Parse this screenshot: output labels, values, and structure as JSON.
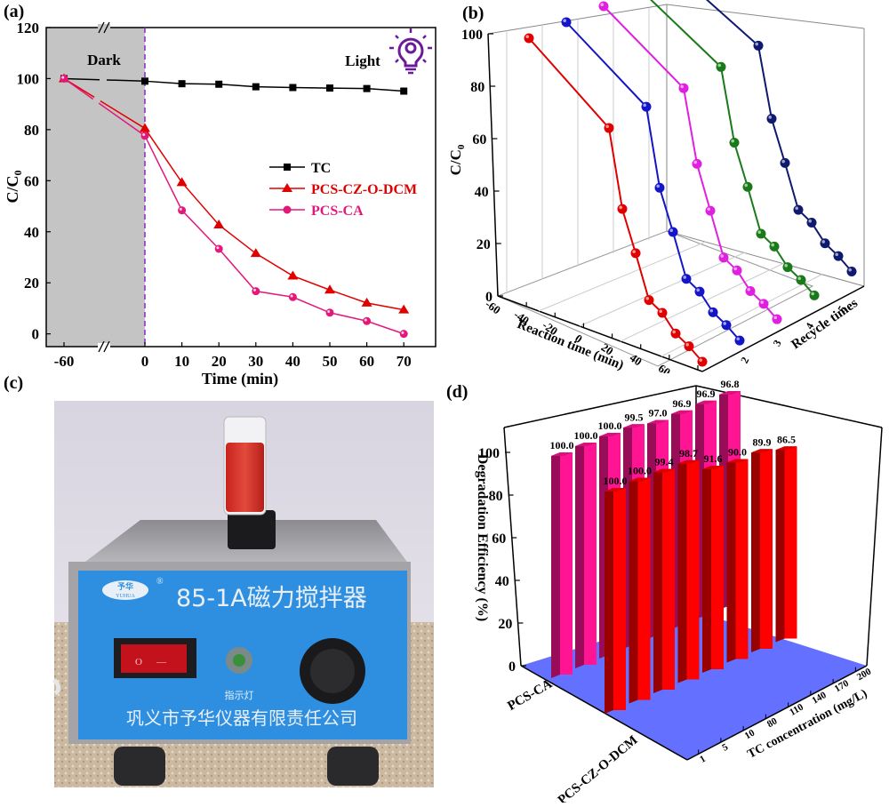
{
  "panels": {
    "a": {
      "label": "(a)"
    },
    "b": {
      "label": "(b)"
    },
    "c": {
      "label": "(c)"
    },
    "d": {
      "label": "(d)"
    }
  },
  "chart_data": [
    {
      "id": "a",
      "type": "line",
      "title": "",
      "xlabel": "Time (min)",
      "ylabel": "C/C0",
      "x": [
        -60,
        0,
        10,
        20,
        30,
        40,
        50,
        60,
        70
      ],
      "x_tick_labels": [
        "-60",
        "0",
        "10",
        "20",
        "30",
        "40",
        "50",
        "60",
        "70"
      ],
      "x_axis_break": "between -60 and 0",
      "ylim": [
        -5,
        120
      ],
      "y_ticks": [
        0,
        20,
        40,
        60,
        80,
        100,
        120
      ],
      "grid": false,
      "legend_position": "right-middle",
      "annotations": [
        {
          "text": "Dark",
          "region": "x from -60 to 0 shaded gray"
        },
        {
          "text": "Light",
          "icon": "lightbulb-icon"
        }
      ],
      "divider": {
        "x": 0,
        "style": "dashed",
        "color": "#8e24c6"
      },
      "colors": {
        "dark_region": "#c4c4c4",
        "icon": "#6a1b9a"
      },
      "series": [
        {
          "name": "TC",
          "marker": "square",
          "color": "#000000",
          "values": [
            100,
            99,
            98,
            97.8,
            96.8,
            96.5,
            96.3,
            96.1,
            95.1
          ]
        },
        {
          "name": "PCS-CZ-O-DCM",
          "marker": "triangle",
          "color": "#e00000",
          "values": [
            100,
            80.5,
            59.3,
            42.7,
            31.5,
            22.7,
            17.2,
            12.1,
            9.4
          ]
        },
        {
          "name": "PCS-CA",
          "marker": "circle",
          "color": "#e3197a",
          "values": [
            100,
            77.6,
            48.4,
            33.3,
            16.7,
            14.4,
            8.3,
            5.0,
            0
          ]
        }
      ]
    },
    {
      "id": "b",
      "type": "line",
      "projection": "3d",
      "title": "",
      "xlabel": "Reaction time (min)",
      "ylabel": "C/C0",
      "zlabel": "Recycle times",
      "x": [
        -60,
        0,
        10,
        20,
        30,
        40,
        50,
        60,
        70
      ],
      "x_tick_labels": [
        "-60",
        "-40",
        "-20",
        "0",
        "20",
        "40",
        "60",
        "80"
      ],
      "z_tick_labels": [
        "1",
        "2",
        "3",
        "4",
        "5"
      ],
      "ylim": [
        0,
        100
      ],
      "y_ticks": [
        0,
        20,
        40,
        60,
        80,
        100
      ],
      "grid": true,
      "series": [
        {
          "name": "1",
          "color": "#e00000",
          "values": [
            100,
            77,
            48,
            33,
            17,
            14,
            8,
            5,
            1
          ]
        },
        {
          "name": "2",
          "color": "#1414c8",
          "values": [
            100,
            79,
            50,
            35,
            19,
            16,
            10,
            7,
            3
          ]
        },
        {
          "name": "3",
          "color": "#e020e0",
          "values": [
            100,
            80,
            53,
            37,
            21,
            18,
            12,
            9,
            5
          ]
        },
        {
          "name": "4",
          "color": "#1a7a1a",
          "values": [
            100,
            82,
            55,
            40,
            24,
            21,
            15,
            12,
            8
          ]
        },
        {
          "name": "5",
          "color": "#0f1a6e",
          "values": [
            100,
            84,
            58,
            43,
            27,
            24,
            18,
            15,
            11
          ]
        }
      ]
    },
    {
      "id": "d",
      "type": "bar",
      "projection": "3d",
      "title": "",
      "xlabel": "TC concentration (mg/L)",
      "ylabel": "Degradation Efficiency  (%)",
      "categories": [
        "1",
        "5",
        "10",
        "80",
        "110",
        "140",
        "170",
        "200"
      ],
      "rows": [
        "PCS-CA",
        "PCS-CZ-O-DCM"
      ],
      "ylim": [
        0,
        100
      ],
      "y_ticks": [
        0,
        20,
        40,
        60,
        80,
        100
      ],
      "floor_color": "#6470ff",
      "series": [
        {
          "name": "PCS-CA",
          "color": "#ff1493",
          "values": [
            100.0,
            100.0,
            100.0,
            99.5,
            97.0,
            96.9,
            96.9,
            96.8
          ],
          "labels": [
            "100.0",
            "100.0",
            "100.0",
            "99.5",
            "97.0",
            "96.9",
            "96.9",
            "96.8"
          ]
        },
        {
          "name": "PCS-CZ-O-DCM",
          "color": "#ff0000",
          "values": [
            100.0,
            100.0,
            99.4,
            98.7,
            91.6,
            90.0,
            89.9,
            86.5
          ],
          "labels": [
            "100.0",
            "100.0",
            "99.4",
            "98.7",
            "91.6",
            "90.0",
            "89.9",
            "86.5"
          ]
        }
      ]
    }
  ],
  "photo": {
    "brand_cn": "予华",
    "brand_en": "YUHUA",
    "registered": "®",
    "model_title": "85-1A磁力搅拌器",
    "indicator_label": "指示灯",
    "company": "巩义市予华仪器有限责任公司",
    "switch_symbols": [
      "O",
      "—"
    ],
    "colors": {
      "panel_blue": "#2e8fe0",
      "liquid": "#d9302a",
      "wall": "#e8e4ec",
      "floor": "#c9b9a4"
    }
  }
}
